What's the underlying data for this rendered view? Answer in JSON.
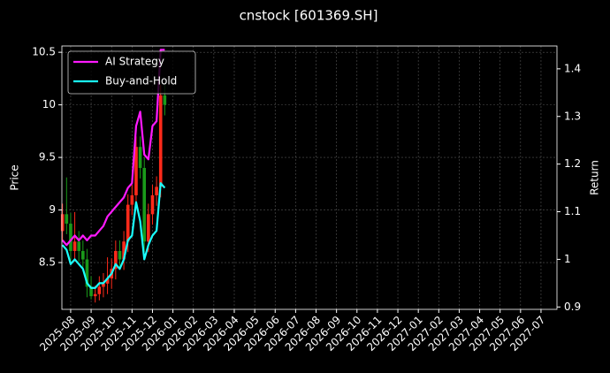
{
  "chart_data": {
    "type": "candlestick-returns",
    "title": "cnstock [601369.SH]",
    "ylabel": "Price",
    "y2label": "Return",
    "xlim": [
      -0.43,
      23.78
    ],
    "xticks": [
      {
        "value": 0,
        "label": "2025-08"
      },
      {
        "value": 1,
        "label": "2025-09"
      },
      {
        "value": 2,
        "label": "2025-10"
      },
      {
        "value": 3,
        "label": "2025-11"
      },
      {
        "value": 4,
        "label": "2025-12"
      },
      {
        "value": 5,
        "label": "2026-01"
      },
      {
        "value": 6,
        "label": "2026-02"
      },
      {
        "value": 7,
        "label": "2026-03"
      },
      {
        "value": 8,
        "label": "2026-04"
      },
      {
        "value": 9,
        "label": "2026-05"
      },
      {
        "value": 10,
        "label": "2026-06"
      },
      {
        "value": 11,
        "label": "2026-07"
      },
      {
        "value": 12,
        "label": "2026-08"
      },
      {
        "value": 13,
        "label": "2026-09"
      },
      {
        "value": 14,
        "label": "2026-10"
      },
      {
        "value": 15,
        "label": "2026-11"
      },
      {
        "value": 16,
        "label": "2026-12"
      },
      {
        "value": 17,
        "label": "2027-01"
      },
      {
        "value": 18,
        "label": "2027-02"
      },
      {
        "value": 19,
        "label": "2027-03"
      },
      {
        "value": 20,
        "label": "2027-04"
      },
      {
        "value": 21,
        "label": "2027-05"
      },
      {
        "value": 22,
        "label": "2027-06"
      },
      {
        "value": 23,
        "label": "2027-07"
      }
    ],
    "ylim": [
      8.055,
      10.56
    ],
    "yticks": [
      8.5,
      9.0,
      9.5,
      10.0,
      10.5
    ],
    "y2lim": [
      0.895,
      1.448
    ],
    "y2ticks": [
      0.9,
      1.0,
      1.1,
      1.2,
      1.3,
      1.4
    ],
    "grid": true,
    "legend": "upper left",
    "up_color": "#ff2a1a",
    "down_color": "#1a9a1a",
    "candles": {
      "x": [
        -0.4,
        -0.2,
        0,
        0.2,
        0.4,
        0.6,
        0.8,
        1.0,
        1.2,
        1.4,
        1.6,
        1.8,
        2.0,
        2.2,
        2.4,
        2.6,
        2.8,
        3.0,
        3.2,
        3.4,
        3.6,
        3.8,
        4.0,
        4.2,
        4.4,
        4.6
      ],
      "open": [
        8.8,
        8.96,
        8.87,
        8.61,
        8.7,
        8.61,
        8.53,
        8.27,
        8.18,
        8.2,
        8.27,
        8.3,
        8.35,
        8.44,
        8.61,
        8.53,
        8.7,
        9.05,
        9.14,
        9.6,
        9.4,
        8.7,
        8.96,
        9.14,
        9.22,
        10.09
      ],
      "high": [
        9.06,
        9.31,
        8.97,
        8.98,
        8.8,
        8.71,
        8.63,
        8.37,
        8.28,
        8.37,
        8.4,
        8.55,
        8.54,
        8.71,
        8.71,
        8.8,
        9.15,
        9.24,
        9.7,
        9.7,
        9.5,
        9.06,
        9.24,
        9.32,
        10.19,
        10.19
      ],
      "low": [
        8.7,
        8.77,
        8.51,
        8.51,
        8.51,
        8.43,
        8.17,
        8.15,
        8.12,
        8.14,
        8.17,
        8.2,
        8.25,
        8.34,
        8.43,
        8.43,
        8.6,
        8.95,
        9.04,
        9.3,
        8.6,
        8.6,
        8.86,
        9.04,
        9.12,
        9.9
      ],
      "close": [
        8.96,
        8.87,
        8.61,
        8.7,
        8.61,
        8.53,
        8.27,
        8.18,
        8.2,
        8.27,
        8.3,
        8.35,
        8.44,
        8.61,
        8.53,
        8.7,
        9.05,
        9.14,
        9.6,
        9.4,
        8.7,
        8.96,
        9.14,
        9.22,
        10.09,
        10.0
      ]
    },
    "x": [
      -0.4,
      -0.2,
      0,
      0.2,
      0.4,
      0.6,
      0.8,
      1.0,
      1.2,
      1.4,
      1.6,
      1.8,
      2.0,
      2.2,
      2.4,
      2.6,
      2.8,
      3.0,
      3.2,
      3.4,
      3.6,
      3.8,
      4.0,
      4.2,
      4.4,
      4.6
    ],
    "series": [
      {
        "name": "AI Strategy",
        "color": "#ff1aff",
        "axis": "y2",
        "values": [
          1.04,
          1.03,
          1.04,
          1.05,
          1.04,
          1.05,
          1.04,
          1.05,
          1.05,
          1.06,
          1.07,
          1.09,
          1.1,
          1.11,
          1.12,
          1.13,
          1.15,
          1.16,
          1.28,
          1.31,
          1.22,
          1.21,
          1.28,
          1.29,
          1.44,
          1.44
        ]
      },
      {
        "name": "Buy-and-Hold",
        "color": "#1affff",
        "axis": "y2",
        "values": [
          1.03,
          1.02,
          0.99,
          1.0,
          0.99,
          0.98,
          0.95,
          0.94,
          0.94,
          0.95,
          0.95,
          0.96,
          0.97,
          0.99,
          0.98,
          1.0,
          1.04,
          1.05,
          1.12,
          1.08,
          1.0,
          1.03,
          1.05,
          1.06,
          1.16,
          1.15
        ]
      }
    ]
  }
}
